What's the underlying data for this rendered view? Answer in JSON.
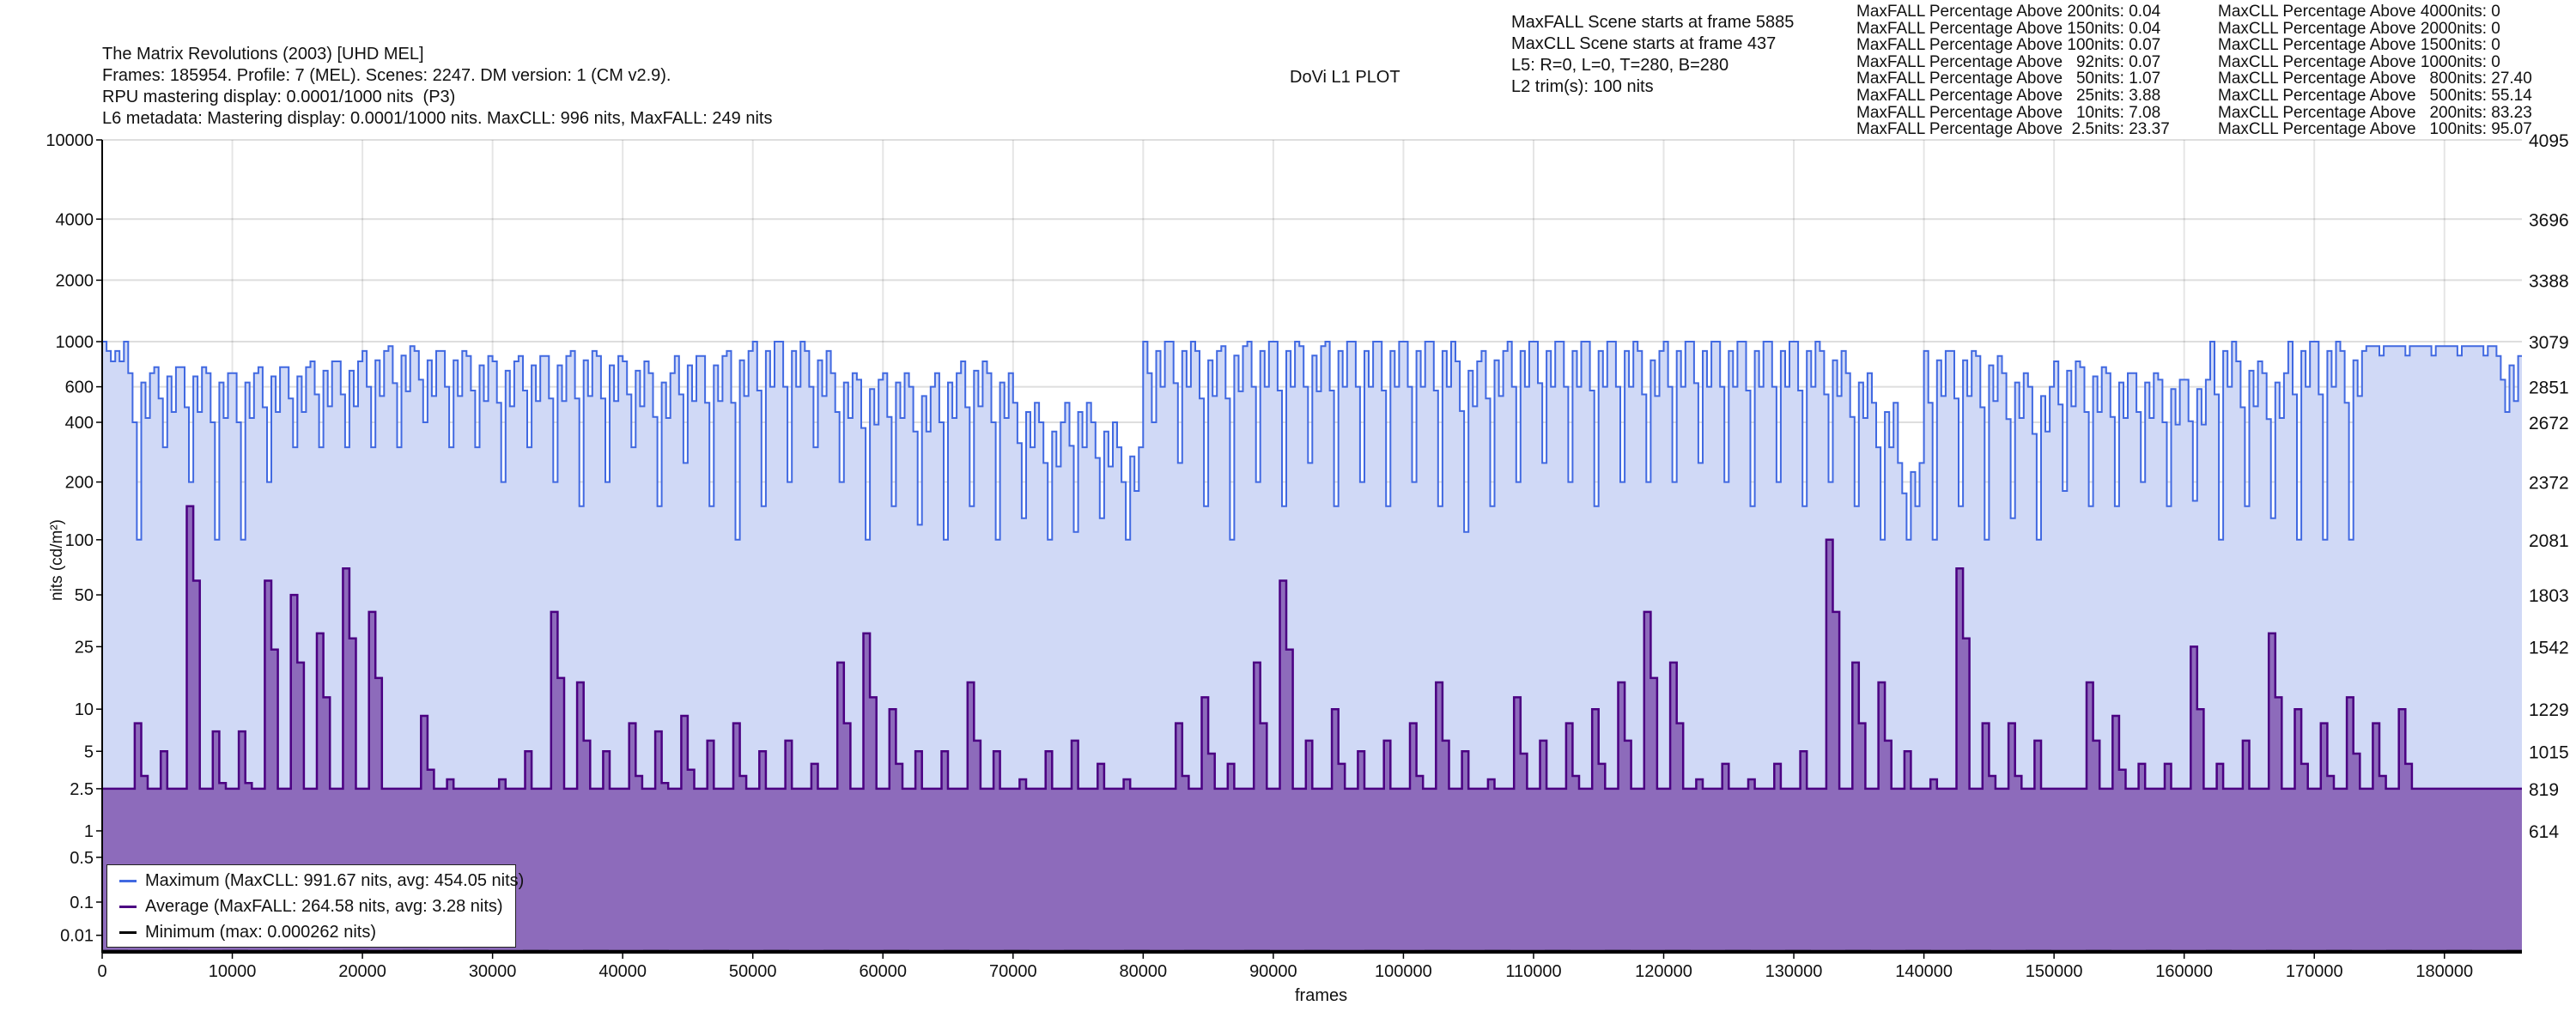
{
  "header": {
    "title": "The Matrix Revolutions (2003) [UHD MEL]",
    "line2": "Frames: 185954. Profile: 7 (MEL). Scenes: 2247. DM version: 1 (CM v2.9).",
    "line3": "RPU mastering display: 0.0001/1000 nits  (P3)",
    "line4": "L6 metadata: Mastering display: 0.0001/1000 nits. MaxCLL: 996 nits, MaxFALL: 249 nits",
    "plot_title": "DoVi L1 PLOT"
  },
  "info": [
    "MaxFALL Scene starts at frame 5885",
    "MaxCLL Scene starts at frame 437",
    "L5: R=0, L=0, T=280, B=280",
    "L2 trim(s): 100 nits"
  ],
  "maxfall_pct": [
    "MaxFALL Percentage Above 200nits: 0.04",
    "MaxFALL Percentage Above 150nits: 0.04",
    "MaxFALL Percentage Above 100nits: 0.07",
    "MaxFALL Percentage Above   92nits: 0.07",
    "MaxFALL Percentage Above   50nits: 1.07",
    "MaxFALL Percentage Above   25nits: 3.88",
    "MaxFALL Percentage Above   10nits: 7.08",
    "MaxFALL Percentage Above  2.5nits: 23.37"
  ],
  "maxcll_pct": [
    "MaxCLL Percentage Above 4000nits: 0",
    "MaxCLL Percentage Above 2000nits: 0",
    "MaxCLL Percentage Above 1500nits: 0",
    "MaxCLL Percentage Above 1000nits: 0",
    "MaxCLL Percentage Above   800nits: 27.40",
    "MaxCLL Percentage Above   500nits: 55.14",
    "MaxCLL Percentage Above   200nits: 83.23",
    "MaxCLL Percentage Above   100nits: 95.07"
  ],
  "legend": [
    {
      "label": "Maximum (MaxCLL: 991.67 nits, avg: 454.05 nits)",
      "color": "#4169e1"
    },
    {
      "label": "Average (MaxFALL: 264.58 nits, avg: 3.28 nits)",
      "color": "#4b0082"
    },
    {
      "label": "Minimum (max: 0.000262 nits)",
      "color": "#000000"
    }
  ],
  "chart_data": {
    "type": "area",
    "title": "DoVi L1 PLOT",
    "xlabel": "frames",
    "ylabel": "nits (cd/m²)",
    "xlim": [
      0,
      185954
    ],
    "y_scale": "PQ",
    "ylim_nits": [
      0,
      10000
    ],
    "x_ticks": [
      0,
      10000,
      20000,
      30000,
      40000,
      50000,
      60000,
      70000,
      80000,
      90000,
      100000,
      110000,
      120000,
      130000,
      140000,
      150000,
      160000,
      170000,
      180000
    ],
    "y_ticks_left": [
      "10000",
      "4000",
      "2000",
      "1000",
      "600",
      "400",
      "200",
      "100",
      "50",
      "25",
      "10",
      "5",
      "2.5",
      "1",
      "0.5",
      "0.1",
      "0.01"
    ],
    "y_ticks_left_values": [
      10000,
      4000,
      2000,
      1000,
      600,
      400,
      200,
      100,
      50,
      25,
      10,
      5,
      2.5,
      1,
      0.5,
      0.1,
      0.01
    ],
    "y_ticks_right": [
      "4095",
      "3696",
      "3388",
      "3079",
      "2851",
      "2672",
      "2372",
      "2081",
      "1803",
      "1542",
      "1229",
      "1015",
      "819",
      "614"
    ],
    "grid": true,
    "legend_position": "bottom-left",
    "bin_frames": 2000,
    "series": [
      {
        "name": "Maximum (MaxCLL)",
        "color": "#4169e1",
        "fill": "#d0d9f6",
        "bin_high": [
          1000,
          700,
          750,
          750,
          700,
          700,
          750,
          750,
          800,
          800,
          900,
          950,
          900,
          900,
          850,
          800,
          850,
          850,
          900,
          850,
          800,
          700,
          850,
          850,
          900,
          1000,
          1000,
          900,
          700,
          650,
          700,
          600,
          700,
          800,
          700,
          500,
          400,
          500,
          400,
          300,
          1000,
          1000,
          900,
          950,
          1000,
          1000,
          950,
          1000,
          1000,
          1000,
          1000,
          1000,
          800,
          900,
          1000,
          1000,
          1000,
          1000,
          1000,
          900,
          1000,
          1000,
          1000,
          1000,
          1000,
          1000,
          900,
          700,
          500,
          250,
          900,
          900,
          850,
          700,
          600,
          800,
          750,
          700,
          700,
          650,
          650,
          1000,
          800,
          700,
          1000,
          1000,
          900,
          950,
          950,
          950,
          950,
          950,
          850
        ],
        "bin_low": [
          800,
          100,
          300,
          200,
          100,
          100,
          200,
          300,
          300,
          300,
          300,
          300,
          400,
          300,
          300,
          200,
          300,
          200,
          150,
          200,
          300,
          150,
          250,
          150,
          100,
          150,
          200,
          300,
          200,
          100,
          150,
          120,
          100,
          150,
          100,
          130,
          100,
          110,
          130,
          100,
          400,
          250,
          150,
          100,
          200,
          150,
          250,
          150,
          200,
          150,
          200,
          150,
          110,
          150,
          200,
          250,
          200,
          150,
          200,
          200,
          200,
          250,
          200,
          150,
          200,
          150,
          200,
          150,
          100,
          100,
          100,
          150,
          100,
          130,
          100,
          180,
          150,
          150,
          200,
          150,
          160,
          100,
          150,
          130,
          100,
          100,
          100,
          950,
          950,
          950,
          950,
          950,
          450
        ]
      },
      {
        "name": "Average (MaxFALL)",
        "color": "#4b0082",
        "fill": "#8d6bbb",
        "floor": 2.5,
        "bin_peak": [
          2.5,
          8,
          5,
          150,
          7,
          7,
          60,
          50,
          30,
          70,
          40,
          2.5,
          9,
          3,
          2.5,
          3,
          5,
          40,
          15,
          5,
          8,
          7,
          9,
          6,
          8,
          5,
          6,
          4,
          20,
          30,
          10,
          5,
          5,
          15,
          5,
          3,
          5,
          6,
          4,
          3,
          2.5,
          8,
          12,
          4,
          20,
          60,
          6,
          10,
          5,
          6,
          8,
          15,
          5,
          3,
          12,
          6,
          8,
          10,
          15,
          40,
          20,
          3,
          4,
          3,
          4,
          5,
          100,
          20,
          15,
          5,
          3,
          70,
          8,
          8,
          6,
          2.5,
          15,
          9,
          4,
          4,
          25,
          4,
          6,
          30,
          10,
          8,
          12,
          8,
          10,
          2.5,
          2.5,
          2.5,
          2.5
        ]
      },
      {
        "name": "Minimum",
        "color": "#000000",
        "max": 0.000262
      }
    ]
  }
}
